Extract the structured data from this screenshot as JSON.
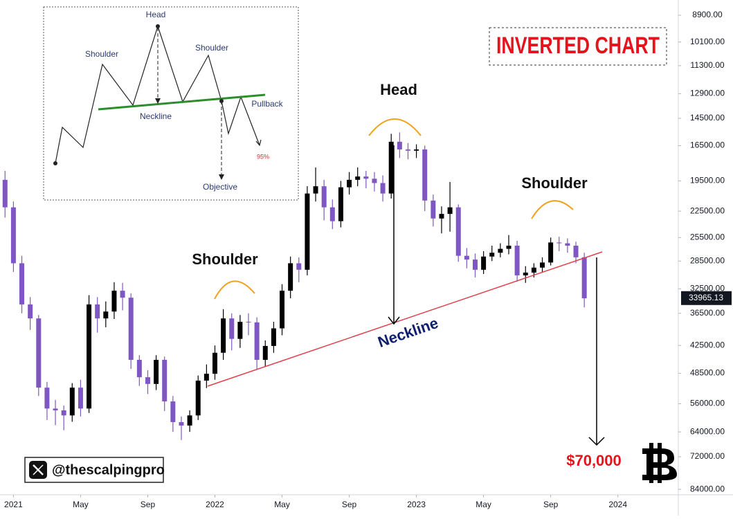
{
  "chart_data": {
    "type": "candlestick",
    "title": "INVERTED CHART",
    "log_scale": true,
    "y_inverted": true,
    "up_color": "#7e57c2",
    "down_color": "#000000",
    "xlim": [
      -0.8,
      39.6
    ],
    "ylim": [
      8280,
      86200
    ],
    "xticks": [
      {
        "value": 0,
        "label": "2021"
      },
      {
        "value": 4,
        "label": "May"
      },
      {
        "value": 8,
        "label": "Sep"
      },
      {
        "value": 12,
        "label": "2022"
      },
      {
        "value": 16,
        "label": "May"
      },
      {
        "value": 20,
        "label": "Sep"
      },
      {
        "value": 24,
        "label": "2023"
      },
      {
        "value": 28,
        "label": "May"
      },
      {
        "value": 32,
        "label": "Sep"
      },
      {
        "value": 36,
        "label": "2024"
      }
    ],
    "yticks": [
      {
        "value": 8900,
        "label": "8900.00"
      },
      {
        "value": 10100,
        "label": "10100.00"
      },
      {
        "value": 11300,
        "label": "11300.00"
      },
      {
        "value": 12900,
        "label": "12900.00"
      },
      {
        "value": 14500,
        "label": "14500.00"
      },
      {
        "value": 16500,
        "label": "16500.00"
      },
      {
        "value": 19500,
        "label": "19500.00"
      },
      {
        "value": 22500,
        "label": "22500.00"
      },
      {
        "value": 25500,
        "label": "25500.00"
      },
      {
        "value": 28500,
        "label": "28500.00"
      },
      {
        "value": 32500,
        "label": "32500.00"
      },
      {
        "value": 36500,
        "label": "36500.00"
      },
      {
        "value": 42500,
        "label": "42500.00"
      },
      {
        "value": 48500,
        "label": "48500.00"
      },
      {
        "value": 56000,
        "label": "56000.00"
      },
      {
        "value": 64000,
        "label": "64000.00"
      },
      {
        "value": 72000,
        "label": "72000.00"
      },
      {
        "value": 84000,
        "label": "84000.00"
      }
    ],
    "last_price": 33965.13,
    "x": [
      -0.5,
      0,
      0.5,
      1,
      1.5,
      2,
      2.5,
      3,
      3.5,
      4,
      4.5,
      5,
      5.5,
      6,
      6.5,
      7,
      7.5,
      8,
      8.5,
      9,
      9.5,
      10,
      10.5,
      11,
      11.5,
      12,
      12.5,
      13,
      13.5,
      14,
      14.5,
      15,
      15.5,
      16,
      16.5,
      17,
      17.5,
      18,
      18.5,
      19,
      19.5,
      20,
      20.5,
      21,
      21.5,
      22,
      22.5,
      23,
      23.5,
      24,
      24.5,
      25,
      25.5,
      26,
      26.5,
      27,
      27.5,
      28,
      28.5,
      29,
      29.5,
      30,
      30.5,
      31,
      31.5,
      32,
      32.5,
      33,
      33.5,
      34
    ],
    "candles": [
      [
        19400,
        23200,
        18600,
        22100
      ],
      [
        22100,
        30000,
        21500,
        28800
      ],
      [
        28800,
        36500,
        27800,
        35000
      ],
      [
        35000,
        39500,
        33800,
        37400
      ],
      [
        37400,
        54000,
        36800,
        51900
      ],
      [
        51900,
        60500,
        50500,
        57300
      ],
      [
        57300,
        62000,
        55000,
        57800
      ],
      [
        57800,
        63500,
        56500,
        59200
      ],
      [
        59200,
        61000,
        50800,
        51900
      ],
      [
        51900,
        59500,
        50000,
        57300
      ],
      [
        57300,
        58500,
        33500,
        35000
      ],
      [
        35000,
        40000,
        33800,
        37400
      ],
      [
        37400,
        39000,
        34500,
        36200
      ],
      [
        36200,
        37500,
        31500,
        32800
      ],
      [
        32800,
        36000,
        31600,
        33900
      ],
      [
        33900,
        47500,
        33200,
        45500
      ],
      [
        45500,
        51500,
        44500,
        49400
      ],
      [
        49400,
        53500,
        47800,
        51000
      ],
      [
        51000,
        52500,
        44500,
        45500
      ],
      [
        45500,
        58000,
        44800,
        55400
      ],
      [
        55400,
        64000,
        54000,
        61100
      ],
      [
        61100,
        66500,
        59500,
        62100
      ],
      [
        62100,
        64000,
        57800,
        59200
      ],
      [
        59200,
        60500,
        49000,
        50200
      ],
      [
        50200,
        52000,
        46500,
        48600
      ],
      [
        48600,
        50000,
        42500,
        44000
      ],
      [
        44000,
        45500,
        35800,
        37400
      ],
      [
        37400,
        43500,
        36500,
        41200
      ],
      [
        41200,
        43000,
        36800,
        38000
      ],
      [
        38000,
        40500,
        36500,
        38100
      ],
      [
        38100,
        47500,
        37200,
        45500
      ],
      [
        45500,
        47000,
        41500,
        42600
      ],
      [
        42600,
        44000,
        38000,
        39200
      ],
      [
        39200,
        40500,
        31800,
        32800
      ],
      [
        32800,
        34000,
        27900,
        28800
      ],
      [
        28800,
        31500,
        28000,
        29700
      ],
      [
        29700,
        30500,
        20000,
        20700
      ],
      [
        20700,
        21500,
        18300,
        20000
      ],
      [
        20000,
        23500,
        19400,
        22100
      ],
      [
        22100,
        24500,
        21300,
        23600
      ],
      [
        23600,
        24300,
        19500,
        20100
      ],
      [
        20100,
        20800,
        18700,
        19400
      ],
      [
        19400,
        20000,
        18300,
        19100
      ],
      [
        19100,
        20200,
        18600,
        19300
      ],
      [
        19300,
        20500,
        18700,
        19700
      ],
      [
        19700,
        21500,
        19000,
        20700
      ],
      [
        20700,
        21200,
        15600,
        16200
      ],
      [
        16200,
        17500,
        15500,
        16800
      ],
      [
        16800,
        17600,
        16300,
        16900
      ],
      [
        16900,
        17500,
        16400,
        16800
      ],
      [
        16800,
        22500,
        16500,
        21400
      ],
      [
        21400,
        24200,
        20800,
        23300
      ],
      [
        23300,
        25000,
        22000,
        22800
      ],
      [
        22800,
        24800,
        19600,
        22100
      ],
      [
        22100,
        28600,
        21800,
        27800
      ],
      [
        27800,
        29500,
        26800,
        28300
      ],
      [
        28300,
        30800,
        27500,
        29700
      ],
      [
        29700,
        30300,
        27200,
        27900
      ],
      [
        27900,
        28500,
        26500,
        27400
      ],
      [
        27400,
        28000,
        26200,
        26900
      ],
      [
        26900,
        27600,
        25200,
        26500
      ],
      [
        26500,
        31400,
        25900,
        30500
      ],
      [
        30500,
        31600,
        29200,
        30100
      ],
      [
        30100,
        30800,
        28800,
        29400
      ],
      [
        29400,
        30000,
        28000,
        28700
      ],
      [
        28700,
        29100,
        25500,
        26100
      ],
      [
        26100,
        27200,
        25400,
        26200
      ],
      [
        26200,
        27400,
        25600,
        26500
      ],
      [
        26500,
        28800,
        26000,
        28000
      ],
      [
        28000,
        35500,
        27400,
        34000
      ]
    ],
    "annotations": {
      "head": "Head",
      "left_shoulder": "Shoulder",
      "right_shoulder": "Shoulder",
      "neckline": "Neckline",
      "target": "$70,000"
    },
    "watermark": "@thescalpingpro",
    "inset": {
      "head": "Head",
      "left_shoulder": "Shoulder",
      "right_shoulder": "Shoulder",
      "neckline": "Neckline",
      "pullback": "Pullback",
      "percent": "95%",
      "objective": "Objective"
    }
  }
}
